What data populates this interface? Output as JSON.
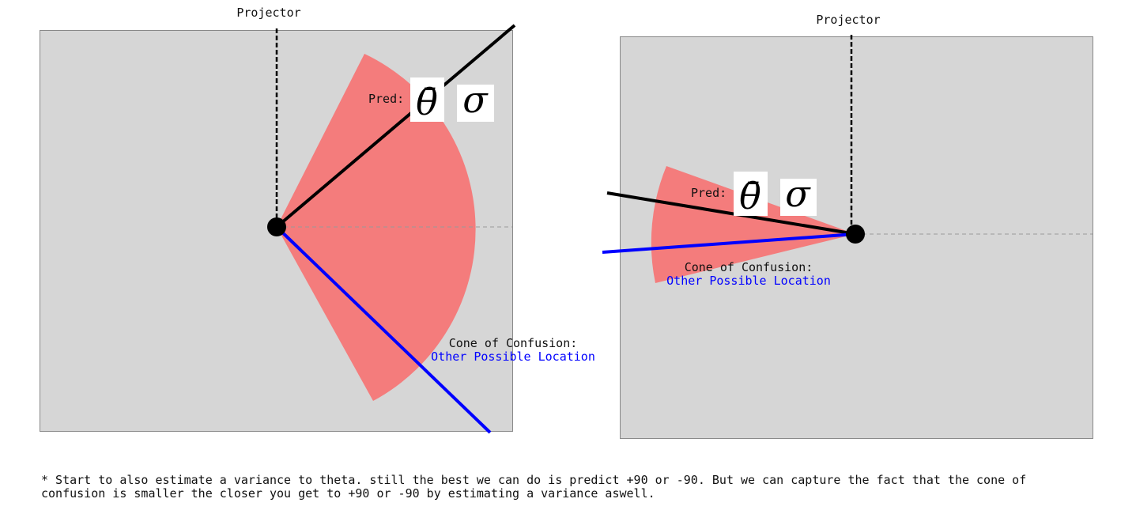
{
  "colors": {
    "panel_fill": "#d6d6d6",
    "panel_border": "#888888",
    "cone_fill": "#f47c7c",
    "prediction_line": "#000000",
    "other_location_line": "#0000ff",
    "projector_line": "#000000",
    "reference_line": "#999999",
    "label_box": "#ffffff"
  },
  "panels": [
    {
      "projector_label": "Projector",
      "pred_label": "Pred:",
      "theta_symbol": "θ̄",
      "sigma_symbol": "σ",
      "cone_label": "Cone of Confusion:",
      "other_location_label": "Other Possible Location"
    },
    {
      "projector_label": "Projector",
      "pred_label": "Pred:",
      "theta_symbol": "θ̄",
      "sigma_symbol": "σ",
      "cone_label": "Cone of Confusion:",
      "other_location_label": "Other Possible Location"
    }
  ],
  "footnote": "* Start to also estimate a variance to theta. still the best we can do is predict +90 or -90. But we can capture the fact that the cone of\nconfusion is smaller the closer you get to +90 or -90 by estimating a variance aswell."
}
